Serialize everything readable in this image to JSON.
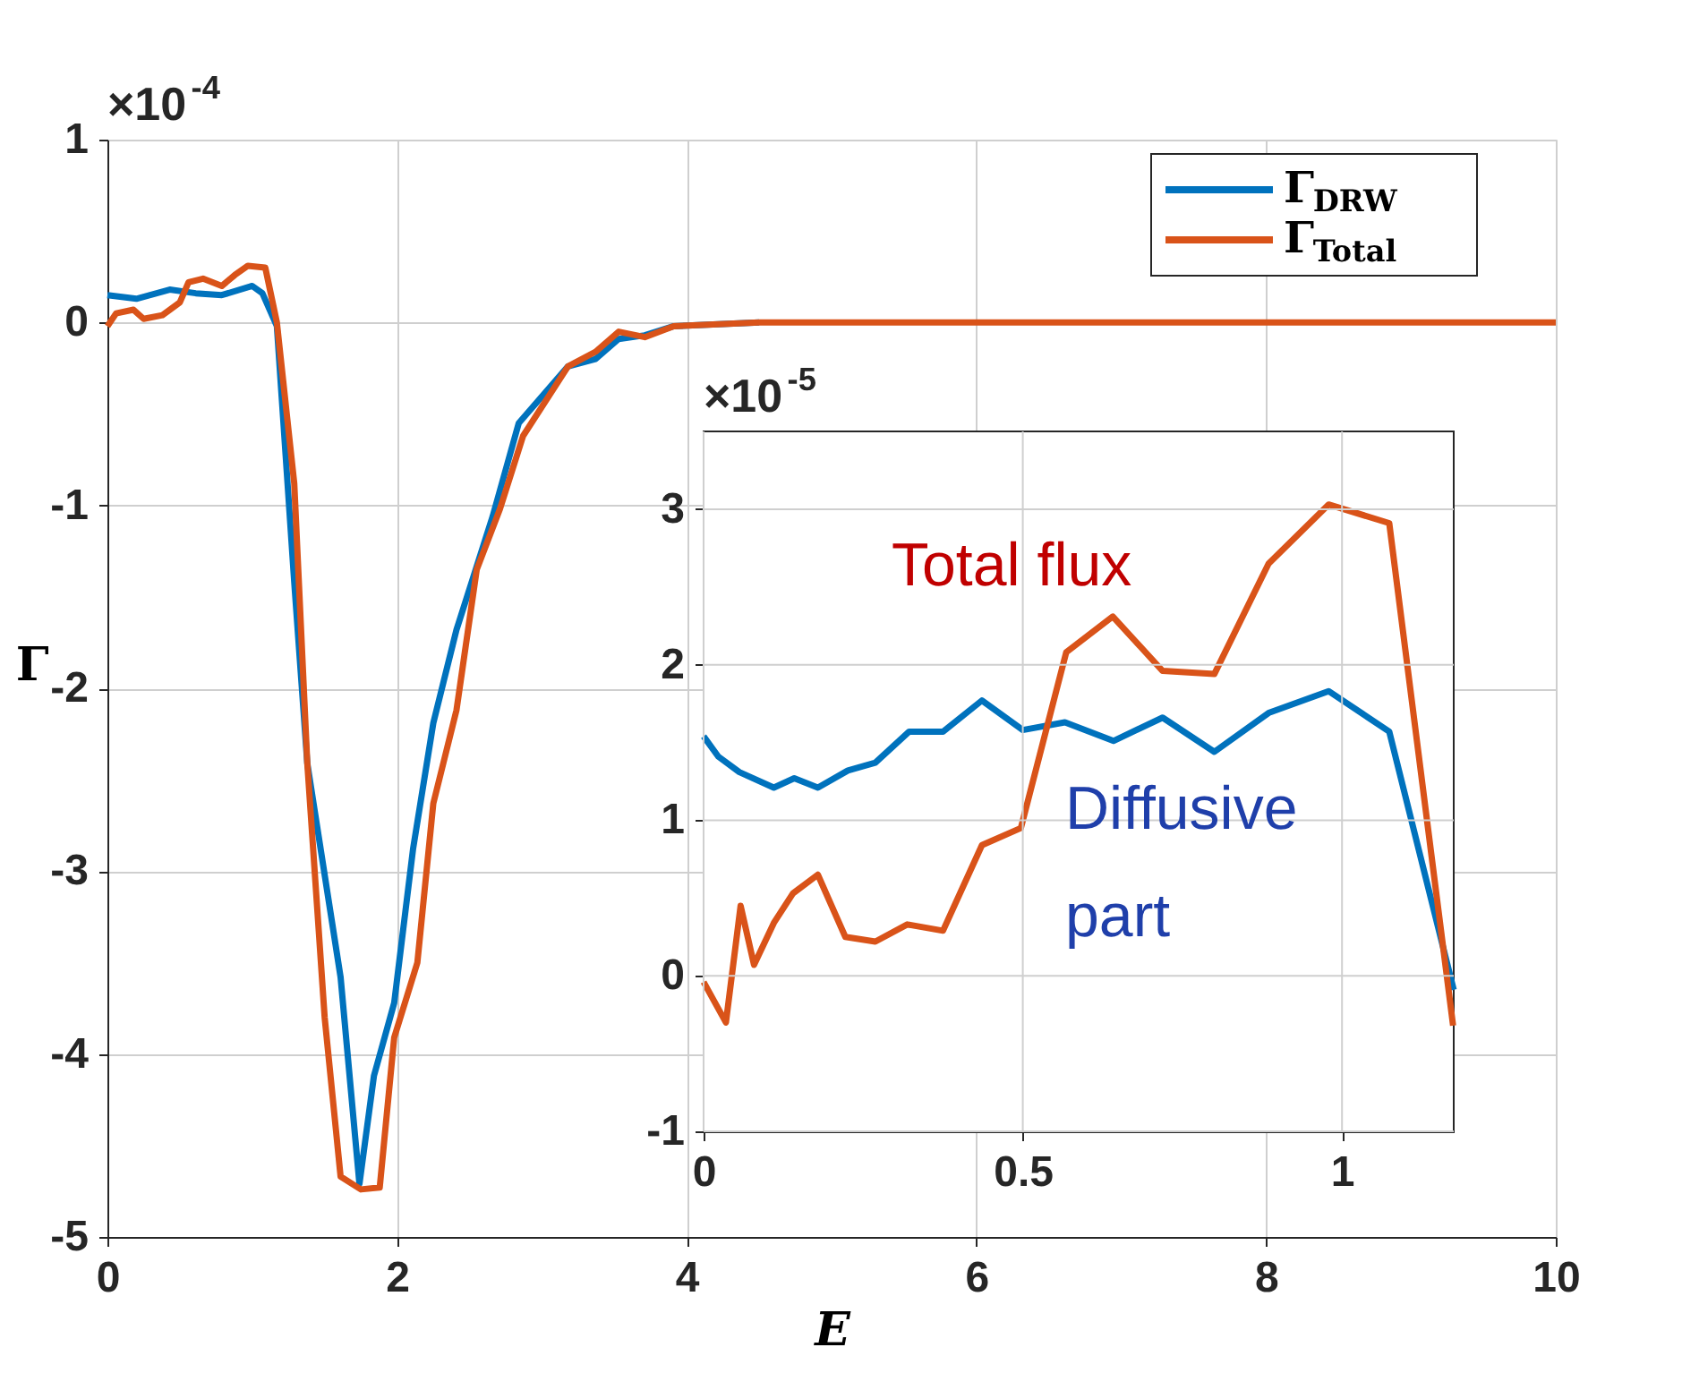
{
  "chart_data": [
    {
      "type": "line",
      "xlabel": "E",
      "ylabel": "Γ",
      "xlim": [
        0,
        10
      ],
      "ylim": [
        -5,
        1
      ],
      "xticks": [
        0,
        2,
        4,
        6,
        8,
        10
      ],
      "yticks": [
        -5,
        -4,
        -3,
        -2,
        -1,
        0,
        1
      ],
      "grid": true,
      "legend": "top right",
      "annotations": [
        "×10$^{-4}$"
      ],
      "series": [
        {
          "name": "Γ$_{DRW}$",
          "color": "#0072bd",
          "x": [
            0,
            0.2,
            0.43,
            0.61,
            0.79,
            1.0,
            1.07,
            1.17,
            1.29,
            1.38,
            1.61,
            1.74,
            1.84,
            1.98,
            2.11,
            2.25,
            2.41,
            2.66,
            2.84,
            3.18,
            3.37,
            3.53,
            3.71,
            3.91,
            4.5
          ],
          "values": [
            0.15,
            0.13,
            0.18,
            0.16,
            0.15,
            0.2,
            0.16,
            -0.02,
            -1.42,
            -2.41,
            -3.58,
            -4.71,
            -4.12,
            -3.72,
            -2.88,
            -2.19,
            -1.68,
            -1.06,
            -0.55,
            -0.24,
            -0.2,
            -0.09,
            -0.07,
            -0.02,
            0
          ]
        },
        {
          "name": "Γ$_{Total}$",
          "color": "#d95319",
          "x": [
            0,
            0.06,
            0.18,
            0.25,
            0.38,
            0.5,
            0.56,
            0.66,
            0.79,
            0.88,
            0.97,
            1.09,
            1.17,
            1.29,
            1.38,
            1.5,
            1.61,
            1.75,
            1.88,
            1.98,
            2.14,
            2.25,
            2.41,
            2.55,
            2.71,
            2.87,
            3.18,
            3.37,
            3.53,
            3.71,
            3.91,
            4.5,
            5,
            10
          ],
          "values": [
            -0.02,
            0.05,
            0.07,
            0.02,
            0.04,
            0.11,
            0.22,
            0.24,
            0.2,
            0.26,
            0.31,
            0.3,
            0,
            -0.88,
            -2.41,
            -3.8,
            -4.67,
            -4.74,
            -4.73,
            -3.91,
            -3.5,
            -2.63,
            -2.12,
            -1.35,
            -1.02,
            -0.62,
            -0.24,
            -0.16,
            -0.05,
            -0.08,
            -0.02,
            0,
            0,
            0
          ]
        }
      ]
    },
    {
      "type": "line",
      "xlim": [
        0,
        1.175
      ],
      "ylim": [
        -1,
        3.5
      ],
      "xticks": [
        0,
        0.5,
        1
      ],
      "yticks": [
        -1,
        0,
        1,
        2,
        3
      ],
      "grid": true,
      "annotations": [
        "×10$^{-5}$",
        "Total flux",
        "Diffusive\npart"
      ],
      "series": [
        {
          "color": "#0072bd",
          "x": [
            0,
            0.023,
            0.056,
            0.11,
            0.142,
            0.179,
            0.226,
            0.269,
            0.322,
            0.375,
            0.436,
            0.5,
            0.566,
            0.642,
            0.719,
            0.8,
            0.885,
            0.979,
            1.074,
            1.175
          ],
          "values": [
            1.54,
            1.41,
            1.31,
            1.21,
            1.27,
            1.21,
            1.32,
            1.37,
            1.57,
            1.57,
            1.77,
            1.58,
            1.63,
            1.51,
            1.66,
            1.44,
            1.69,
            1.83,
            1.57,
            -0.09
          ]
        },
        {
          "color": "#d95319",
          "x": [
            0,
            0.035,
            0.058,
            0.079,
            0.11,
            0.14,
            0.179,
            0.222,
            0.269,
            0.319,
            0.375,
            0.436,
            0.497,
            0.568,
            0.641,
            0.719,
            0.8,
            0.885,
            0.979,
            1.074,
            1.174
          ],
          "values": [
            -0.04,
            -0.3,
            0.45,
            0.07,
            0.34,
            0.53,
            0.65,
            0.25,
            0.22,
            0.33,
            0.29,
            0.84,
            0.95,
            2.08,
            2.31,
            1.96,
            1.94,
            2.65,
            3.03,
            2.91,
            -0.32
          ]
        }
      ]
    }
  ]
}
